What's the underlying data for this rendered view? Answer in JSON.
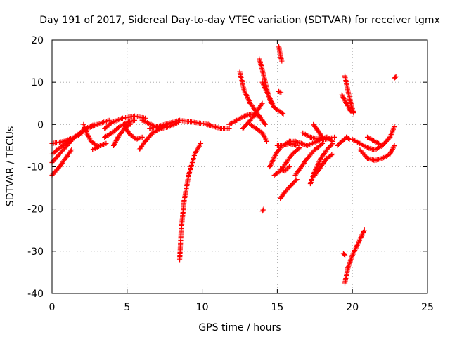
{
  "chart_data": {
    "type": "scatter",
    "title": "Day 191 of 2017, Sidereal Day-to-day VTEC variation (SDTVAR) for receiver tgmx",
    "xlabel": "GPS time / hours",
    "ylabel": "SDTVAR / TECUs",
    "xlim": [
      0,
      25
    ],
    "ylim": [
      -40,
      20
    ],
    "xticks": [
      0,
      5,
      10,
      15,
      20,
      25
    ],
    "yticks": [
      -40,
      -30,
      -20,
      -10,
      0,
      10,
      20
    ],
    "xtick_labels": [
      "0",
      "5",
      "10",
      "15",
      "20",
      "25"
    ],
    "ytick_labels": [
      "-40",
      "-30",
      "-20",
      "-10",
      "0",
      "10",
      "20"
    ],
    "grid": true,
    "marker": "+",
    "series": [
      {
        "name": "SDTVAR",
        "color": "#ff0000",
        "tracks": [
          [
            [
              0,
              -12
            ],
            [
              0.5,
              -10
            ],
            [
              1.0,
              -7.5
            ],
            [
              1.3,
              -6
            ]
          ],
          [
            [
              0,
              -9
            ],
            [
              0.5,
              -7
            ],
            [
              1.0,
              -5
            ],
            [
              1.5,
              -3
            ],
            [
              2.0,
              -2
            ]
          ],
          [
            [
              0,
              -7
            ],
            [
              0.7,
              -5
            ],
            [
              1.5,
              -3
            ],
            [
              2.2,
              -1
            ],
            [
              2.8,
              0
            ]
          ],
          [
            [
              0,
              -4.5
            ],
            [
              0.8,
              -4
            ],
            [
              1.5,
              -3
            ],
            [
              2.3,
              -1
            ],
            [
              3.0,
              0
            ],
            [
              3.8,
              1
            ]
          ],
          [
            [
              2.7,
              -6
            ],
            [
              3.2,
              -5
            ],
            [
              3.6,
              -4.5
            ]
          ],
          [
            [
              2.1,
              0
            ],
            [
              2.3,
              -2
            ],
            [
              2.6,
              -4
            ],
            [
              3.0,
              -5
            ]
          ],
          [
            [
              3.5,
              -1
            ],
            [
              4.0,
              0.5
            ],
            [
              4.7,
              1.5
            ],
            [
              5.5,
              2
            ],
            [
              6.2,
              1.5
            ]
          ],
          [
            [
              3.5,
              -3
            ],
            [
              4.0,
              -2
            ],
            [
              4.5,
              -0.5
            ],
            [
              5.0,
              0.5
            ],
            [
              5.5,
              1
            ]
          ],
          [
            [
              4.1,
              -5
            ],
            [
              4.4,
              -3
            ],
            [
              4.8,
              -1
            ],
            [
              5.2,
              0
            ]
          ],
          [
            [
              4.8,
              0
            ],
            [
              5.1,
              -2
            ],
            [
              5.6,
              -3.5
            ],
            [
              6.0,
              -3
            ]
          ],
          [
            [
              5.8,
              -6
            ],
            [
              6.2,
              -4
            ],
            [
              6.7,
              -2
            ],
            [
              7.2,
              -1
            ],
            [
              7.6,
              0
            ]
          ],
          [
            [
              6.0,
              1
            ],
            [
              6.6,
              0
            ],
            [
              7.2,
              -1
            ],
            [
              7.8,
              -0.5
            ],
            [
              8.4,
              0.5
            ]
          ],
          [
            [
              6.5,
              -1
            ],
            [
              7.5,
              0
            ],
            [
              8.5,
              1
            ],
            [
              9.5,
              0.5
            ],
            [
              10.5,
              0
            ]
          ],
          [
            [
              8.5,
              -32
            ],
            [
              8.6,
              -25
            ],
            [
              8.8,
              -18
            ],
            [
              9.1,
              -12
            ],
            [
              9.5,
              -7
            ],
            [
              9.9,
              -4.5
            ]
          ],
          [
            [
              10.3,
              0
            ],
            [
              10.8,
              -0.5
            ],
            [
              11.3,
              -1
            ],
            [
              11.8,
              -1
            ]
          ],
          [
            [
              11.8,
              0
            ],
            [
              12.3,
              1
            ],
            [
              12.8,
              2
            ],
            [
              13.3,
              2.5
            ],
            [
              13.8,
              2
            ]
          ],
          [
            [
              12.5,
              12.5
            ],
            [
              12.8,
              8
            ],
            [
              13.2,
              5
            ],
            [
              13.6,
              3
            ],
            [
              14.0,
              1
            ],
            [
              14.2,
              0
            ]
          ],
          [
            [
              12.7,
              -1
            ],
            [
              13.2,
              1
            ],
            [
              13.6,
              3
            ],
            [
              14.0,
              5
            ]
          ],
          [
            [
              13.2,
              0
            ],
            [
              13.6,
              -1
            ],
            [
              14.0,
              -2
            ],
            [
              14.3,
              -4
            ]
          ],
          [
            [
              13.8,
              15.5
            ],
            [
              14.0,
              13
            ],
            [
              14.2,
              10
            ],
            [
              14.4,
              7
            ],
            [
              14.6,
              5
            ]
          ],
          [
            [
              14.0,
              10
            ],
            [
              14.4,
              7
            ],
            [
              14.8,
              4
            ],
            [
              15.2,
              3
            ],
            [
              15.4,
              2.5
            ]
          ],
          [
            [
              14.0,
              -20.5
            ],
            [
              14.1,
              -20
            ]
          ],
          [
            [
              14.5,
              -10
            ],
            [
              14.9,
              -7
            ],
            [
              15.3,
              -5
            ],
            [
              15.8,
              -4.5
            ],
            [
              16.3,
              -5
            ]
          ],
          [
            [
              14.8,
              -12
            ],
            [
              15.2,
              -11
            ],
            [
              15.6,
              -9
            ],
            [
              16.0,
              -7
            ],
            [
              16.5,
              -5.5
            ]
          ],
          [
            [
              15.1,
              18.5
            ],
            [
              15.2,
              16.5
            ],
            [
              15.3,
              15
            ]
          ],
          [
            [
              15.1,
              7.8
            ],
            [
              15.25,
              7.5
            ]
          ],
          [
            [
              15.0,
              -5
            ],
            [
              15.4,
              -5
            ],
            [
              15.8,
              -4
            ],
            [
              16.2,
              -4
            ],
            [
              16.6,
              -4.5
            ],
            [
              17.0,
              -5
            ]
          ],
          [
            [
              15.2,
              -17.5
            ],
            [
              15.5,
              -16
            ],
            [
              15.9,
              -14.5
            ],
            [
              16.3,
              -13
            ]
          ],
          [
            [
              15.2,
              -10.5
            ],
            [
              15.5,
              -11
            ],
            [
              15.8,
              -10
            ]
          ],
          [
            [
              16.2,
              -12
            ],
            [
              16.6,
              -10
            ],
            [
              17.0,
              -8
            ],
            [
              17.5,
              -6
            ],
            [
              18.0,
              -4.5
            ]
          ],
          [
            [
              16.7,
              -2
            ],
            [
              17.2,
              -3
            ],
            [
              17.8,
              -3.5
            ],
            [
              18.3,
              -3
            ],
            [
              18.7,
              -4
            ]
          ],
          [
            [
              17.0,
              -5
            ],
            [
              17.6,
              -4
            ],
            [
              18.2,
              -3.5
            ],
            [
              18.8,
              -3
            ]
          ],
          [
            [
              17.2,
              -14
            ],
            [
              17.5,
              -11
            ],
            [
              17.9,
              -8
            ],
            [
              18.3,
              -6
            ],
            [
              18.7,
              -4.5
            ]
          ],
          [
            [
              17.5,
              -12
            ],
            [
              17.9,
              -10
            ],
            [
              18.3,
              -8
            ],
            [
              18.7,
              -7
            ]
          ],
          [
            [
              17.4,
              0
            ],
            [
              17.7,
              -1.5
            ],
            [
              18.0,
              -3
            ]
          ],
          [
            [
              19.0,
              -5
            ],
            [
              19.3,
              -4
            ],
            [
              19.6,
              -3
            ],
            [
              19.8,
              -3.5
            ]
          ],
          [
            [
              19.5,
              11.5
            ],
            [
              19.7,
              8
            ],
            [
              19.9,
              5
            ],
            [
              20.1,
              2.5
            ]
          ],
          [
            [
              19.3,
              7
            ],
            [
              19.6,
              5
            ],
            [
              19.9,
              3
            ]
          ],
          [
            [
              19.4,
              -30.5
            ],
            [
              19.5,
              -31
            ]
          ],
          [
            [
              19.5,
              -37.5
            ],
            [
              19.7,
              -34
            ],
            [
              20.0,
              -31
            ],
            [
              20.4,
              -28
            ],
            [
              20.8,
              -25
            ]
          ],
          [
            [
              20.0,
              -3.5
            ],
            [
              20.5,
              -4.5
            ],
            [
              21.0,
              -5.5
            ],
            [
              21.5,
              -6
            ],
            [
              22.0,
              -5
            ]
          ],
          [
            [
              20.5,
              -6
            ],
            [
              21.0,
              -8
            ],
            [
              21.5,
              -8.5
            ],
            [
              22.0,
              -8
            ],
            [
              22.5,
              -7
            ],
            [
              22.8,
              -5
            ]
          ],
          [
            [
              21.0,
              -3
            ],
            [
              21.5,
              -4
            ],
            [
              22.0,
              -5
            ],
            [
              22.5,
              -3
            ],
            [
              22.8,
              -0.5
            ]
          ],
          [
            [
              22.8,
              11
            ],
            [
              22.9,
              11.3
            ]
          ]
        ]
      }
    ]
  }
}
